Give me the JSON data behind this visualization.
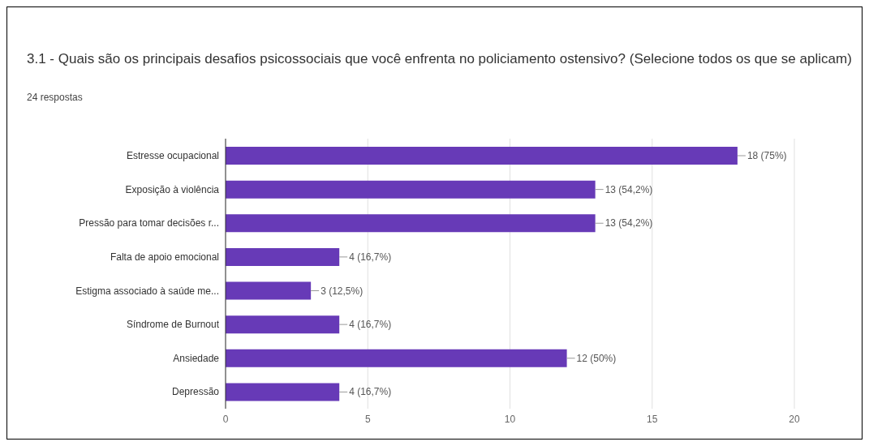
{
  "chart_data": {
    "type": "bar",
    "orientation": "horizontal",
    "title": "3.1 -  Quais são os principais desafios psicossociais que você enfrenta no policiamento ostensivo? (Selecione todos os que se aplicam)",
    "subtitle": "24 respostas",
    "categories": [
      "Estresse ocupacional",
      "Exposição à violência",
      "Pressão para tomar decisões r...",
      "Falta de apoio emocional",
      "Estigma associado à saúde me...",
      "Síndrome de Burnout",
      "Ansiedade",
      "Depressão"
    ],
    "values": [
      18,
      13,
      13,
      4,
      3,
      4,
      12,
      4
    ],
    "value_labels": [
      "18 (75%)",
      "13 (54,2%)",
      "13 (54,2%)",
      "4 (16,7%)",
      "3 (12,5%)",
      "4 (16,7%)",
      "12 (50%)",
      "4 (16,7%)"
    ],
    "color": "#673ab7",
    "xlim": [
      0,
      20
    ],
    "xticks": [
      0,
      5,
      10,
      15,
      20
    ],
    "grid": "x",
    "legend": false
  }
}
